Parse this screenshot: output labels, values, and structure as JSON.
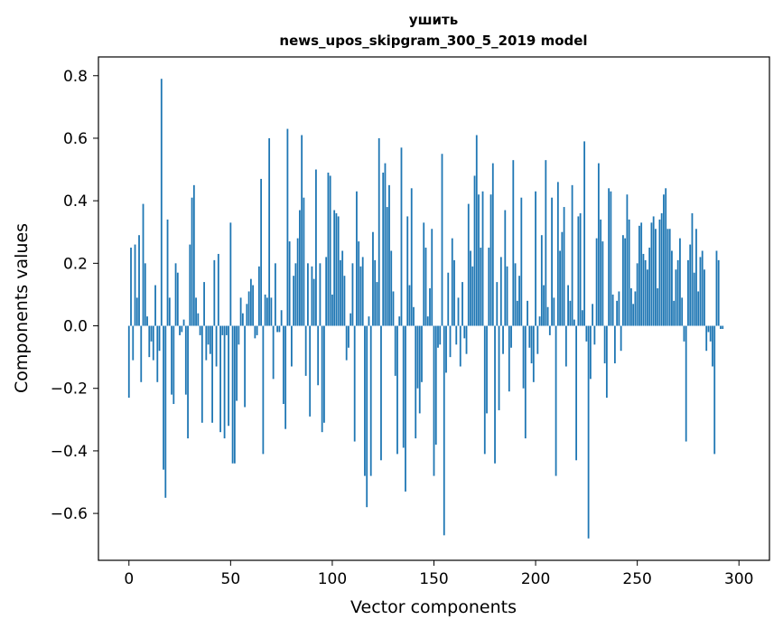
{
  "chart_data": {
    "type": "bar",
    "title": "ушить",
    "subtitle": "news_upos_skipgram_300_5_2019 model",
    "xlabel": "Vector components",
    "ylabel": "Components values",
    "xlim": [
      -15,
      315
    ],
    "ylim": [
      -0.75,
      0.86
    ],
    "xticks": [
      0,
      50,
      100,
      150,
      200,
      250,
      300
    ],
    "xtick_labels": [
      "0",
      "50",
      "100",
      "150",
      "200",
      "250",
      "300"
    ],
    "yticks": [
      -0.6,
      -0.4,
      -0.2,
      0.0,
      0.2,
      0.4,
      0.6,
      0.8
    ],
    "ytick_labels": [
      "−0.6",
      "−0.4",
      "−0.2",
      "0.0",
      "0.2",
      "0.4",
      "0.6",
      "0.8"
    ],
    "grid": false,
    "bar_color": "#1f77b4",
    "values": [
      -0.23,
      0.25,
      -0.11,
      0.26,
      0.09,
      0.29,
      -0.18,
      0.39,
      0.2,
      0.03,
      -0.1,
      -0.05,
      -0.11,
      0.13,
      -0.18,
      -0.08,
      0.79,
      -0.46,
      -0.55,
      0.34,
      0.09,
      -0.22,
      -0.25,
      0.2,
      0.17,
      -0.03,
      -0.02,
      0.02,
      -0.22,
      -0.36,
      0.26,
      0.41,
      0.45,
      0.09,
      0.04,
      -0.03,
      -0.31,
      0.14,
      -0.11,
      -0.06,
      -0.09,
      -0.31,
      0.21,
      -0.13,
      0.23,
      -0.34,
      -0.03,
      -0.36,
      -0.03,
      -0.32,
      0.33,
      -0.44,
      -0.44,
      -0.24,
      -0.06,
      0.09,
      0.04,
      -0.26,
      0.07,
      0.11,
      0.15,
      0.13,
      -0.04,
      -0.03,
      0.19,
      0.47,
      -0.41,
      0.1,
      0.09,
      0.6,
      0.09,
      -0.17,
      0.2,
      -0.02,
      -0.02,
      0.05,
      -0.25,
      -0.33,
      0.63,
      0.27,
      -0.13,
      0.16,
      0.2,
      0.28,
      0.37,
      0.61,
      0.41,
      -0.16,
      0.2,
      -0.29,
      0.19,
      0.15,
      0.5,
      -0.19,
      0.2,
      -0.34,
      -0.31,
      0.22,
      0.49,
      0.48,
      0.1,
      0.37,
      0.36,
      0.35,
      0.21,
      0.24,
      0.16,
      -0.11,
      -0.07,
      0.04,
      0.2,
      -0.37,
      0.43,
      0.27,
      0.19,
      0.22,
      -0.48,
      -0.58,
      0.03,
      -0.48,
      0.3,
      0.21,
      0.14,
      0.6,
      -0.43,
      0.49,
      0.52,
      0.38,
      0.45,
      0.24,
      0.11,
      -0.16,
      -0.41,
      0.03,
      0.57,
      -0.39,
      -0.53,
      0.35,
      0.13,
      0.44,
      0.06,
      -0.36,
      -0.2,
      -0.28,
      -0.18,
      0.33,
      0.25,
      0.03,
      0.12,
      0.31,
      -0.48,
      -0.38,
      -0.07,
      -0.06,
      0.55,
      -0.67,
      -0.15,
      0.17,
      -0.1,
      0.28,
      0.21,
      -0.06,
      0.09,
      -0.13,
      0.14,
      -0.04,
      -0.09,
      0.39,
      0.24,
      0.19,
      0.48,
      0.61,
      0.42,
      0.25,
      0.43,
      -0.41,
      -0.28,
      0.25,
      0.42,
      0.52,
      -0.44,
      0.14,
      -0.27,
      0.22,
      -0.09,
      0.37,
      0.19,
      -0.21,
      -0.07,
      0.53,
      0.2,
      0.08,
      0.16,
      0.41,
      -0.2,
      -0.36,
      0.08,
      -0.07,
      -0.12,
      -0.18,
      0.43,
      -0.09,
      0.03,
      0.29,
      0.13,
      0.53,
      0.06,
      -0.03,
      0.41,
      0.09,
      -0.48,
      0.46,
      0.24,
      0.3,
      0.38,
      -0.13,
      0.13,
      0.08,
      0.45,
      0.02,
      -0.43,
      0.35,
      0.36,
      0.05,
      0.59,
      -0.05,
      -0.68,
      -0.17,
      0.07,
      -0.06,
      0.28,
      0.52,
      0.34,
      0.27,
      -0.12,
      -0.23,
      0.44,
      0.43,
      0.1,
      -0.12,
      0.08,
      0.11,
      -0.08,
      0.29,
      0.28,
      0.42,
      0.34,
      0.12,
      0.07,
      0.11,
      0.2,
      0.32,
      0.33,
      0.23,
      0.21,
      0.18,
      0.25,
      0.33,
      0.35,
      0.31,
      0.12,
      0.34,
      0.36,
      0.42,
      0.44,
      0.31,
      0.31,
      0.24,
      0.08,
      0.18,
      0.21,
      0.28,
      0.09,
      -0.05,
      -0.37,
      0.21,
      0.26,
      0.36,
      0.17,
      0.31,
      0.11,
      0.22,
      0.24,
      0.18,
      -0.08,
      -0.02,
      -0.05,
      -0.13,
      -0.41,
      0.24,
      0.21,
      -0.01,
      -0.01
    ]
  }
}
